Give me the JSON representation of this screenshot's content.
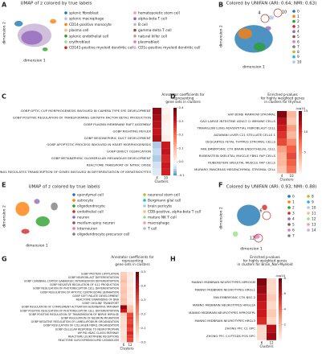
{
  "panel_labels": [
    "A",
    "B",
    "C",
    "D",
    "E",
    "F",
    "G",
    "H"
  ],
  "umap_plots": [
    {
      "title": "UMAP of z colored by true labels",
      "xlabel": "dimension 1",
      "ylabel": "dimension 2",
      "legend": [
        {
          "name": "splenic fibroblast",
          "color": "#1f77b4"
        },
        {
          "name": "splenic macrophage",
          "color": "#aec7e8"
        },
        {
          "name": "CD14-positive monocyte",
          "color": "#ff7f0e"
        },
        {
          "name": "plasma cell",
          "color": "#ffbb78"
        },
        {
          "name": "splenic endothelial cell",
          "color": "#2ca02c"
        },
        {
          "name": "erythroblast",
          "color": "#98df8a"
        },
        {
          "name": "CD141-positive myeloid dendritic cell",
          "color": "#d62728"
        },
        {
          "name": "hematopoietic stem cell",
          "color": "#ff9896"
        },
        {
          "name": "alpha-beta T cell",
          "color": "#9467bd"
        },
        {
          "name": "B cell",
          "color": "#c5b0d5"
        },
        {
          "name": "gamma-delta T cell",
          "color": "#8c564b"
        },
        {
          "name": "natural killer cell",
          "color": "#c49c94"
        },
        {
          "name": "plasmablast",
          "color": "#e377c2"
        },
        {
          "name": "CD1c-positive myeloid dendritic cell",
          "color": "#f7b6d2"
        }
      ],
      "annotations": []
    },
    {
      "title": "Colored by UNIFAN (ARI: 0.64; NMI: 0.63)",
      "xlabel": "dimension 1",
      "ylabel": "dimension 2",
      "legend": [
        {
          "name": "0",
          "color": "#1f77b4"
        },
        {
          "name": "1",
          "color": "#ff7f0e"
        },
        {
          "name": "2",
          "color": "#2ca02c"
        },
        {
          "name": "3",
          "color": "#d62728"
        },
        {
          "name": "4",
          "color": "#9467bd"
        },
        {
          "name": "5",
          "color": "#8c564b"
        },
        {
          "name": "6",
          "color": "#e377c2"
        },
        {
          "name": "7",
          "color": "#7f7f7f"
        },
        {
          "name": "8",
          "color": "#bcbd22"
        },
        {
          "name": "9",
          "color": "#17becf"
        },
        {
          "name": "10",
          "color": "#aec7e8"
        }
      ],
      "annotations": [
        "4",
        "10"
      ]
    },
    {
      "title": "UMAP of z colored by true labels",
      "xlabel": "dimension 1",
      "ylabel": "dimension 2",
      "legend": [
        {
          "name": "ependymal cell",
          "color": "#1f77b4"
        },
        {
          "name": "astrocyte",
          "color": "#ff7f0e"
        },
        {
          "name": "oligodendrocyte",
          "color": "#2ca02c"
        },
        {
          "name": "endothelial cell",
          "color": "#d62728"
        },
        {
          "name": "neuron",
          "color": "#9467bd"
        },
        {
          "name": "medium spiny neuron",
          "color": "#8c564b"
        },
        {
          "name": "interneuron",
          "color": "#e377c2"
        },
        {
          "name": "oligodendrocyte precursor cell",
          "color": "#7f7f7f"
        },
        {
          "name": "neuronal stem cell",
          "color": "#bcbd22"
        },
        {
          "name": "Bergmann glial cell",
          "color": "#17becf"
        },
        {
          "name": "brain pericyte",
          "color": "#aec7e8"
        },
        {
          "name": "CD8-positive, alpha-beta T cell",
          "color": "#ffbb78"
        },
        {
          "name": "mature NK T cell",
          "color": "#98df8a"
        },
        {
          "name": "macrophage",
          "color": "#ff9896"
        },
        {
          "name": "T cell",
          "color": "#c5b0d5"
        }
      ],
      "annotations": []
    },
    {
      "title": "Colored by UNIFAN (ARI: 0.93; NMI: 0.88)",
      "xlabel": "dimension 1",
      "ylabel": "dimension 2",
      "legend": [
        {
          "name": "0",
          "color": "#1f77b4"
        },
        {
          "name": "1",
          "color": "#ff7f0e"
        },
        {
          "name": "2",
          "color": "#2ca02c"
        },
        {
          "name": "3",
          "color": "#d62728"
        },
        {
          "name": "4",
          "color": "#9467bd"
        },
        {
          "name": "5",
          "color": "#8c564b"
        },
        {
          "name": "6",
          "color": "#e377c2"
        },
        {
          "name": "7",
          "color": "#7f7f7f"
        },
        {
          "name": "8",
          "color": "#bcbd22"
        },
        {
          "name": "9",
          "color": "#17becf"
        },
        {
          "name": "10",
          "color": "#aec7e8"
        },
        {
          "name": "11",
          "color": "#ffbb78"
        },
        {
          "name": "12",
          "color": "#98df8a"
        },
        {
          "name": "13",
          "color": "#ff9896"
        },
        {
          "name": "14",
          "color": "#c5b0d5"
        }
      ],
      "annotations": [
        "6",
        "12"
      ]
    }
  ],
  "heatmaps": [
    {
      "title": [
        "Annotator coefficients for",
        "representing",
        "gene sets in clusters"
      ],
      "cmap": "diverging",
      "rows": [
        "GOBP OPTIC CUP MORPHOGENESIS INVOLVED IN CAMERA TYPE EYE DEVELOPMENT",
        "GOBP POSITIVE REGULATION OF TRANSFORMING GROWTH FACTOR BETA1 PRODUCTION",
        "GOBP PLASMA MEMBRANE RAFT ASSEMBLY",
        "GOBP RIGHTING REFLEX",
        "GOBP MESONEPHRIC DUCT DEVELOPMENT",
        "GOBP APOPTOTIC PROCESS INVOLVED IN HEART MORPHOGENESIS",
        "GOBP DIRECT OSSIFICATION",
        "GOBP METANEPHRIC GLOMERULAR MESANGIUM DEVELOPMENT",
        "REACTOME TRANSPORT OF NITRIC OXIDE",
        "REACTOME RUNX1 REGULATES TRANSCRIPTION OF GENES INVOLVED IN DIFFERENTIATION OF KERATINOCYTES"
      ],
      "columns": [
        "4",
        "10"
      ],
      "xlabel": "Clusters",
      "values": [
        [
          0.36,
          0.0
        ],
        [
          0.34,
          0.01
        ],
        [
          0.32,
          0.0
        ],
        [
          0.31,
          0.0
        ],
        [
          0.33,
          0.01
        ],
        [
          -0.06,
          0.3
        ],
        [
          -0.05,
          0.31
        ],
        [
          -0.06,
          0.28
        ],
        [
          -0.04,
          0.3
        ],
        [
          -0.03,
          0.29
        ]
      ],
      "clim": [
        -0.1,
        0.4
      ],
      "cticks": [
        -0.1,
        {
          "value": 0,
          "label": "0.0"
        },
        0.1,
        0.2,
        0.3,
        0.4
      ]
    },
    {
      "title": [
        "Enriched p-values",
        "for highly weighted genes",
        "in clusters for thymus"
      ],
      "cmap": "sequential",
      "clabel": "-log10",
      "rows": [
        "HAY BONE MARROW STROMAL",
        "GAO LARGE INTESTINE ADULT CI IMMUNE CELLS",
        "TRAVAGLINI LUNG ADVENTITIAL FIBROBLAST CELL",
        "AIZARANI LIVER C21 STELLATE CELLS 1",
        "DESCARTES FETAL THYMUS STROMAL CELLS",
        "FAN EMBRYONIC CTX BRAIN ENDOTHELIAL CELL",
        "RUBENSTEIN SKELETAL MUSCLE FBN1 FAP CELLS",
        "RUBENSTEIN SKELETAL MUSCLE FAP CELLS",
        "MURARO PANCREAS MESENCHYMAL STROMAL CELL"
      ],
      "columns": [
        "4",
        "10"
      ],
      "xlabel": "Clusters",
      "values": [
        [
          14,
          4
        ],
        [
          12,
          3
        ],
        [
          11,
          5
        ],
        [
          10,
          4
        ],
        [
          9,
          6
        ],
        [
          5,
          8
        ],
        [
          4,
          9
        ],
        [
          4,
          8
        ],
        [
          3,
          7
        ]
      ],
      "clim": [
        0,
        15
      ],
      "cticks": [
        5,
        10,
        15
      ]
    },
    {
      "title": [
        "Annotator coefficients for",
        "representing",
        "gene sets in clusters"
      ],
      "cmap": "sequential",
      "rows": [
        "GOBP PROTEIN LIPOYLATION",
        "GOBP NEUROBLAST DIFFERENTIATION",
        "GOBP CEREBRAL CORTEX GABAERGIC INTERNEURON DIFFERENTIATION",
        "GOBP NEGATIVE REGULATION OF IL12 PRODUCTION",
        "GOBP REGULATION OF PHOTORECEPTOR CELL DIFFERENTIATION",
        "GOBP REGULATION OF MITOTIC CENTROSOME SEPARATION",
        "GOBP SOFT PALATE DEVELOPMENT",
        "REACTOME UNWINDING OF DNA",
        "GOBP CHOLINE TRANSPORT",
        "GOBP REGULATION OF COMPLEMENT ACTIVATION ALTERNATIVE PATHWAY",
        "GOBP POSITIVE REGULATION OF PHOTORECEPTOR CELL DIFFERENTIATION",
        "GOBP POSITIVE REGULATION OF TRANSMISSION OF NERVE IMPULSE",
        "GOBP REGULATION OF NEURON MIGRATION",
        "GOBP NEGATIVE REGULATION OF LAMELLIPODIUM ORGANIZATION",
        "GOBP REGULATION OF COLLAGEN FIBRIL ORGANIZATION",
        "GOBP CELLULAR RESPONSE TO NEUROTROPHIN",
        "WP PID HDAC CLASSI PATHWAY",
        "REACTOME LEUKOTRIENE RECEPTORS",
        "REACTOME GLYCOSPHINGOLIPID CATABOLISM"
      ],
      "columns": [
        "6",
        "12"
      ],
      "xlabel": "Clusters",
      "values": [
        [
          0.08,
          0.03
        ],
        [
          0.1,
          0.02
        ],
        [
          0.12,
          0.03
        ],
        [
          0.09,
          0.02
        ],
        [
          0.1,
          0.03
        ],
        [
          0.11,
          0.02
        ],
        [
          0.09,
          0.03
        ],
        [
          0.12,
          0.02
        ],
        [
          0.1,
          0.03
        ],
        [
          0.45,
          0.1
        ],
        [
          0.38,
          0.12
        ],
        [
          0.08,
          0.3
        ],
        [
          0.06,
          0.32
        ],
        [
          0.05,
          0.3
        ],
        [
          0.06,
          0.33
        ],
        [
          0.05,
          0.3
        ],
        [
          0.04,
          0.35
        ],
        [
          0.05,
          0.32
        ],
        [
          0.04,
          0.3
        ]
      ],
      "clim": [
        0,
        0.5
      ],
      "cticks": [
        {
          "value": 0,
          "label": "0.0"
        },
        0.1,
        0.2,
        0.3,
        0.4,
        0.5
      ]
    },
    {
      "title": [
        "Enriched p-values",
        "for highly weighted genes",
        "in clusters for Brain_Non-Myeloid"
      ],
      "cmap": "sequential",
      "clabel": "-log10",
      "rows": [
        "MANNO MIDBRAIN NEUROTYPES HPROGM",
        "MANNO MIDBRAIN NEUROTYPES HRGL1",
        "FAN EMBRYONIC CTX NSC 2",
        "MANNO MIDBRAIN NEUROTYPES HRGL2A",
        "MANNO MIDBRAIN NEUROTYPES HPROGFPL",
        "MANNO MIDBRAIN NEUROTYPES HRGL3",
        "ZHONG PFC C1 OPC",
        "ZHONG PFC C4 PTGDS POS OPC"
      ],
      "columns": [
        "6",
        "12"
      ],
      "xlabel": "Clusters",
      "values": [
        [
          7.5,
          1
        ],
        [
          7,
          1
        ],
        [
          6.5,
          1.5
        ],
        [
          6,
          1
        ],
        [
          6,
          1.5
        ],
        [
          5.5,
          1
        ],
        [
          1,
          6.5
        ],
        [
          1,
          7
        ]
      ],
      "clim": [
        0,
        8
      ],
      "cticks": [
        2,
        4,
        6,
        8
      ]
    }
  ]
}
